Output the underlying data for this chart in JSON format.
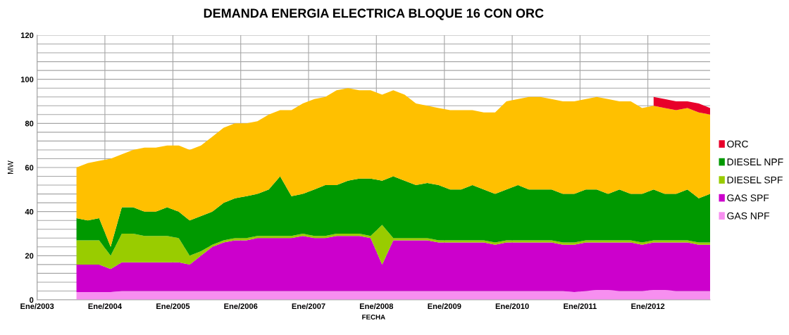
{
  "chart_data": {
    "type": "area",
    "stacked": true,
    "title": "DEMANDA ENERGIA ELECTRICA BLOQUE 16 CON ORC",
    "xlabel": "FECHA",
    "ylabel": "MW",
    "x": [
      "2003-08",
      "2003-10",
      "2003-12",
      "2004-02",
      "2004-04",
      "2004-06",
      "2004-08",
      "2004-10",
      "2004-12",
      "2005-02",
      "2005-04",
      "2005-06",
      "2005-08",
      "2005-10",
      "2005-12",
      "2006-02",
      "2006-04",
      "2006-06",
      "2006-08",
      "2006-10",
      "2006-12",
      "2007-02",
      "2007-04",
      "2007-06",
      "2007-08",
      "2007-10",
      "2007-12",
      "2008-02",
      "2008-04",
      "2008-06",
      "2008-08",
      "2008-10",
      "2008-12",
      "2009-02",
      "2009-04",
      "2009-06",
      "2009-08",
      "2009-10",
      "2009-12",
      "2010-02",
      "2010-04",
      "2010-06",
      "2010-08",
      "2010-10",
      "2010-12",
      "2011-02",
      "2011-04",
      "2011-06",
      "2011-08",
      "2011-10",
      "2011-12",
      "2012-02",
      "2012-04",
      "2012-06",
      "2012-08",
      "2012-10",
      "2012-12"
    ],
    "series": [
      {
        "name": "GAS NPF",
        "color": "#f78ff0",
        "values": [
          3.5,
          3.5,
          3.5,
          3.5,
          4,
          4,
          4,
          4,
          4,
          4,
          4,
          4,
          4,
          4,
          4,
          4,
          4,
          4,
          4,
          4,
          4,
          4,
          4,
          4,
          4,
          4,
          4,
          4,
          4,
          4,
          4,
          4,
          4,
          4,
          4,
          4,
          4,
          4,
          4,
          4,
          4,
          4,
          4,
          4,
          3.5,
          4,
          4.5,
          4.5,
          4,
          4,
          4,
          4.5,
          4.5,
          4,
          4,
          4,
          4
        ]
      },
      {
        "name": "GAS SPF",
        "color": "#cc00cc",
        "values": [
          12.5,
          12.5,
          12.5,
          10.5,
          13,
          13,
          13,
          13,
          13,
          13,
          12,
          16,
          20,
          22,
          23,
          23,
          24,
          24,
          24,
          24,
          25,
          24,
          24,
          25,
          25,
          25,
          24,
          12,
          23,
          23,
          23,
          23,
          22,
          22,
          22,
          22,
          22,
          21,
          22,
          22,
          22,
          22,
          22,
          21,
          21.5,
          22,
          21.5,
          21.5,
          22,
          22,
          21,
          21.5,
          21.5,
          22,
          22,
          21,
          21
        ]
      },
      {
        "name": "DIESEL SPF",
        "color": "#99cc00",
        "values": [
          11,
          11,
          11,
          6,
          13,
          13,
          12,
          12,
          12,
          11,
          4,
          2,
          1,
          1,
          1,
          1,
          1,
          1,
          1,
          1,
          1,
          1,
          1,
          1,
          1,
          1,
          1,
          18,
          1,
          1,
          1,
          1,
          1,
          1,
          1,
          1,
          1,
          1,
          1,
          1,
          1,
          1,
          1,
          1,
          1,
          1,
          1,
          1,
          1,
          1,
          1,
          1,
          1,
          1,
          1,
          1,
          1
        ]
      },
      {
        "name": "DIESEL NPF",
        "color": "#009900",
        "values": [
          10,
          9,
          10,
          4,
          12,
          12,
          11,
          11,
          13,
          12,
          16,
          16,
          15,
          17,
          18,
          19,
          19,
          21,
          27,
          18,
          18,
          21,
          23,
          22,
          24,
          25,
          26,
          20,
          28,
          26,
          24,
          25,
          25,
          23,
          23,
          25,
          23,
          22,
          23,
          25,
          23,
          23,
          23,
          22,
          22,
          23,
          23,
          21,
          23,
          21,
          22,
          23,
          21,
          21,
          23,
          20,
          22
        ]
      },
      {
        "color": "#ffc000",
        "values": [
          23,
          26,
          26,
          40,
          24,
          26,
          29,
          29,
          28,
          30,
          32,
          32,
          34,
          34,
          34,
          33,
          33,
          34,
          30,
          39,
          41,
          41,
          40,
          43,
          42,
          40,
          40,
          39,
          39,
          39,
          37,
          35,
          35,
          36,
          36,
          34,
          35,
          37,
          40,
          39,
          42,
          42,
          41,
          42,
          42,
          41,
          42,
          43,
          40,
          42,
          39,
          38,
          39,
          38,
          37,
          39,
          36
        ]
      },
      {
        "name": "ORC",
        "color": "#e8002a",
        "values": [
          null,
          null,
          null,
          null,
          null,
          null,
          null,
          null,
          null,
          null,
          null,
          null,
          null,
          null,
          null,
          null,
          null,
          null,
          null,
          null,
          null,
          null,
          null,
          null,
          null,
          null,
          null,
          null,
          null,
          null,
          null,
          null,
          null,
          null,
          null,
          null,
          null,
          null,
          null,
          null,
          null,
          null,
          null,
          null,
          null,
          null,
          null,
          null,
          null,
          null,
          null,
          4,
          4,
          4,
          3,
          4,
          3
        ]
      }
    ],
    "xlim": [
      "2003-01",
      "2012-12"
    ],
    "xticks": [
      {
        "value": "2003-01",
        "label": "Ene/2003"
      },
      {
        "value": "2004-01",
        "label": "Ene/2004"
      },
      {
        "value": "2005-01",
        "label": "Ene/2005"
      },
      {
        "value": "2006-01",
        "label": "Ene/2006"
      },
      {
        "value": "2007-01",
        "label": "Ene/2007"
      },
      {
        "value": "2008-01",
        "label": "Ene/2008"
      },
      {
        "value": "2009-01",
        "label": "Ene/2009"
      },
      {
        "value": "2010-01",
        "label": "Ene/2010"
      },
      {
        "value": "2011-01",
        "label": "Ene/2011"
      },
      {
        "value": "2012-01",
        "label": "Ene/2012"
      }
    ],
    "ylim": [
      0,
      120
    ],
    "yticks": [
      0,
      {
        "value": 4,
        "label": null
      },
      {
        "value": 8,
        "label": null
      },
      {
        "value": 12,
        "label": null
      },
      {
        "value": 16,
        "label": null
      },
      20,
      {
        "value": 24,
        "label": null
      },
      {
        "value": 28,
        "label": null
      },
      {
        "value": 32,
        "label": null
      },
      {
        "value": 36,
        "label": null
      },
      40,
      {
        "value": 44,
        "label": null
      },
      {
        "value": 48,
        "label": null
      },
      {
        "value": 52,
        "label": null
      },
      {
        "value": 56,
        "label": null
      },
      60,
      {
        "value": 64,
        "label": null
      },
      {
        "value": 68,
        "label": null
      },
      {
        "value": 72,
        "label": null
      },
      {
        "value": 76,
        "label": null
      },
      80,
      {
        "value": 84,
        "label": null
      },
      {
        "value": 88,
        "label": null
      },
      {
        "value": 92,
        "label": null
      },
      {
        "value": 96,
        "label": null
      },
      100,
      {
        "value": 104,
        "label": null
      },
      {
        "value": 108,
        "label": null
      },
      {
        "value": 112,
        "label": null
      },
      {
        "value": 116,
        "label": null
      },
      120
    ],
    "grid": true,
    "legend": "right"
  }
}
